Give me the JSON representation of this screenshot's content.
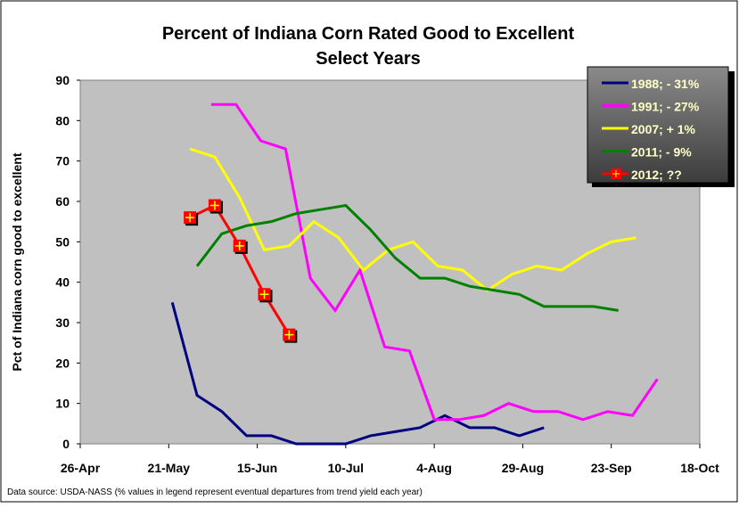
{
  "chart_data": {
    "type": "line",
    "title": "Percent of Indiana Corn Rated Good to Excellent",
    "subtitle": "Select Years",
    "xlabel": "",
    "ylabel": "Pct of Indiana corn good to excellent",
    "ylim": [
      0,
      90
    ],
    "yticks": [
      "0",
      "10",
      "20",
      "30",
      "40",
      "50",
      "60",
      "70",
      "80",
      "90"
    ],
    "xlim": [
      "04-26",
      "10-18"
    ],
    "xticks": [
      "26-Apr",
      "21-May",
      "15-Jun",
      "10-Jul",
      "4-Aug",
      "29-Aug",
      "23-Sep",
      "18-Oct"
    ],
    "grid": false,
    "legend_position": "top-right",
    "source_note": "Data source: USDA-NASS (% values in legend represent eventual departures from trend yield each year)",
    "series": [
      {
        "name": "1988; - 31%",
        "color": "#000080",
        "marker": "none",
        "start": "05-22",
        "values": [
          35,
          12,
          8,
          2,
          2,
          0,
          0,
          0,
          2,
          3,
          4,
          7,
          4,
          4,
          2,
          4
        ]
      },
      {
        "name": "1991; - 27%",
        "color": "#ff00ff",
        "marker": "none",
        "start": "06-02",
        "values": [
          84,
          84,
          75,
          73,
          41,
          33,
          43,
          24,
          23,
          6,
          6,
          7,
          10,
          8,
          8,
          6,
          8,
          7,
          16
        ]
      },
      {
        "name": "2007; + 1%",
        "color": "#ffff00",
        "marker": "none",
        "start": "05-27",
        "values": [
          73,
          71,
          61,
          48,
          49,
          55,
          51,
          43,
          48,
          50,
          44,
          43,
          38,
          42,
          44,
          43,
          47,
          50,
          51
        ]
      },
      {
        "name": "2011; - 9%",
        "color": "#008000",
        "marker": "none",
        "start": "05-29",
        "values": [
          44,
          52,
          54,
          55,
          57,
          58,
          59,
          53,
          46,
          41,
          41,
          39,
          38,
          37,
          34,
          34,
          34,
          33
        ]
      },
      {
        "name": "2012; ??",
        "color": "#ff0000",
        "marker": "square-plus",
        "start": "05-27",
        "values": [
          56,
          59,
          49,
          37,
          27
        ]
      }
    ]
  }
}
